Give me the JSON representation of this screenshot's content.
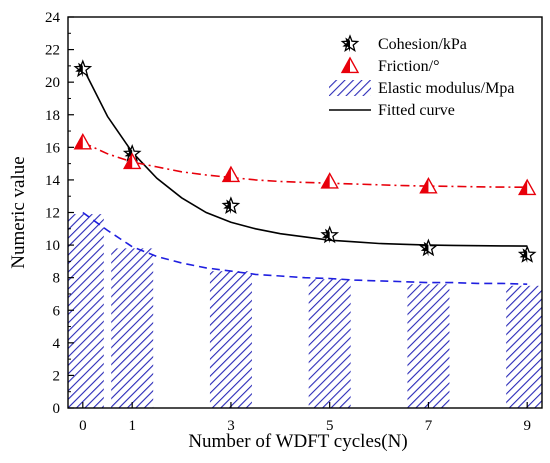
{
  "chart_data": {
    "type": "bar",
    "xlabel": "Number of WDFT  cycles(N)",
    "ylabel": "Numeric value",
    "ylim": [
      0,
      24
    ],
    "yticks": [
      0,
      2,
      4,
      6,
      8,
      10,
      12,
      14,
      16,
      18,
      20,
      22,
      24
    ],
    "xticks": [
      0,
      1,
      3,
      5,
      7,
      9
    ],
    "xlim": [
      -0.3,
      9.3
    ],
    "legend_position": "top-right",
    "series": [
      {
        "name": "Cohesion/kPa",
        "kind": "scatter",
        "marker": "star",
        "color": "#000000",
        "x": [
          0,
          1,
          3,
          5,
          7,
          9
        ],
        "values": [
          20.8,
          15.6,
          12.4,
          10.6,
          9.8,
          9.4
        ]
      },
      {
        "name": "Friction/°",
        "kind": "scatter",
        "marker": "half-triangle",
        "color": "#e8000b",
        "x": [
          0,
          1,
          3,
          5,
          7,
          9
        ],
        "values": [
          16.3,
          15.1,
          14.3,
          13.9,
          13.6,
          13.5
        ]
      },
      {
        "name": "Elastic modulus/Mpa",
        "kind": "bar",
        "pattern": "diagonal-hatch",
        "color": "#2a2ab8",
        "x": [
          0,
          1,
          3,
          5,
          7,
          9
        ],
        "values": [
          11.9,
          9.8,
          8.4,
          7.9,
          7.6,
          7.5
        ]
      }
    ],
    "fits": [
      {
        "name": "Fitted curve",
        "for": "Cohesion/kPa",
        "style": "solid",
        "color": "#000000",
        "x": [
          0,
          0.5,
          1,
          1.5,
          2,
          2.5,
          3,
          3.5,
          4,
          4.5,
          5,
          5.5,
          6,
          6.5,
          7,
          7.5,
          8,
          8.5,
          9
        ],
        "values": [
          20.9,
          17.9,
          15.7,
          14.1,
          12.9,
          12.0,
          11.4,
          11.0,
          10.7,
          10.5,
          10.3,
          10.2,
          10.1,
          10.05,
          10.0,
          9.98,
          9.96,
          9.95,
          9.94
        ]
      },
      {
        "for": "Friction/°",
        "style": "dash-dot",
        "color": "#e8000b",
        "x": [
          0,
          0.5,
          1,
          1.5,
          2,
          2.5,
          3,
          3.5,
          4,
          4.5,
          5,
          5.5,
          6,
          6.5,
          7,
          7.5,
          8,
          8.5,
          9
        ],
        "values": [
          16.3,
          15.6,
          15.1,
          14.8,
          14.5,
          14.3,
          14.15,
          14.0,
          13.9,
          13.85,
          13.8,
          13.75,
          13.7,
          13.65,
          13.62,
          13.6,
          13.58,
          13.56,
          13.55
        ]
      },
      {
        "for": "Elastic modulus/Mpa",
        "style": "dashed",
        "color": "#1f1fe0",
        "x": [
          0,
          0.5,
          1,
          1.5,
          2,
          2.5,
          3,
          3.5,
          4,
          4.5,
          5,
          5.5,
          6,
          6.5,
          7,
          7.5,
          8,
          8.5,
          9
        ],
        "values": [
          12.0,
          10.9,
          9.9,
          9.3,
          8.9,
          8.6,
          8.4,
          8.2,
          8.1,
          8.0,
          7.95,
          7.85,
          7.8,
          7.75,
          7.7,
          7.7,
          7.65,
          7.65,
          7.6
        ]
      }
    ],
    "legend": [
      {
        "label": "Cohesion/kPa",
        "marker": "star"
      },
      {
        "label": "Friction/°",
        "marker": "half-triangle"
      },
      {
        "label": "Elastic modulus/Mpa",
        "marker": "hatched-box"
      },
      {
        "label": "Fitted curve",
        "marker": "line"
      }
    ]
  }
}
